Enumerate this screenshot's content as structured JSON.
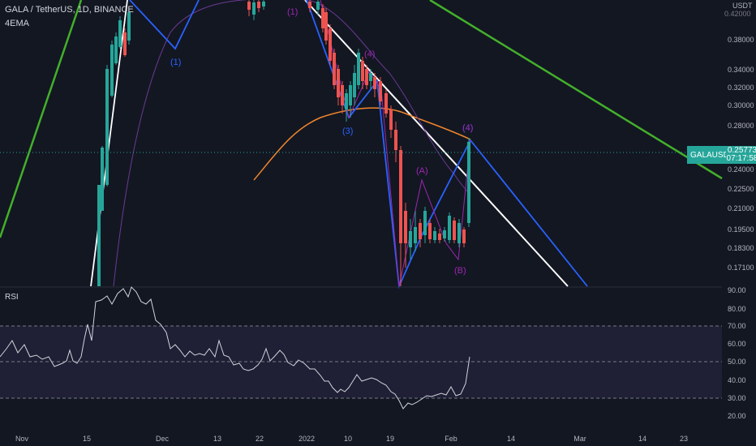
{
  "header": {
    "title": "GALA / TetherUS, 1D, BINANCE",
    "indicator": "4EMA",
    "currency": "USDT",
    "top_price_partial": "0.42000"
  },
  "price_axis": {
    "labels": [
      "0.38000",
      "0.34000",
      "0.32000",
      "0.30000",
      "0.28000",
      "0.24000",
      "0.22500",
      "0.21000",
      "0.19500",
      "0.18300",
      "0.17100"
    ]
  },
  "last_price": {
    "symbol": "GALAUSDT",
    "price": "0.25773",
    "countdown": "07:17:58"
  },
  "rsi": {
    "label": "RSI",
    "axis_labels": [
      "90.00",
      "80.00",
      "70.00",
      "60.00",
      "50.00",
      "40.00",
      "30.00",
      "20.00"
    ],
    "levels": [
      70,
      50,
      30
    ]
  },
  "time_axis": {
    "labels": [
      "Nov",
      "15",
      "Dec",
      "13",
      "22",
      "2022",
      "10",
      "19",
      "Feb",
      "14",
      "Mar",
      "14",
      "23"
    ]
  },
  "wave_labels": {
    "blue": [
      "(1)",
      "(3)",
      "(4)"
    ],
    "purple": [
      "(1)",
      "(4)",
      "(A)",
      "(B)",
      "(4)"
    ]
  },
  "colors": {
    "background": "#131722",
    "up": "#26a69a",
    "down": "#ef5350",
    "ema": "#f0862b",
    "blue_wave": "#2962ff",
    "purple_wave": "#9c27b0",
    "trend_green": "#43b02a",
    "trend_white": "#ffffff",
    "rsi_line": "#d1d4dc",
    "rsi_band": "#7e57c2"
  }
}
